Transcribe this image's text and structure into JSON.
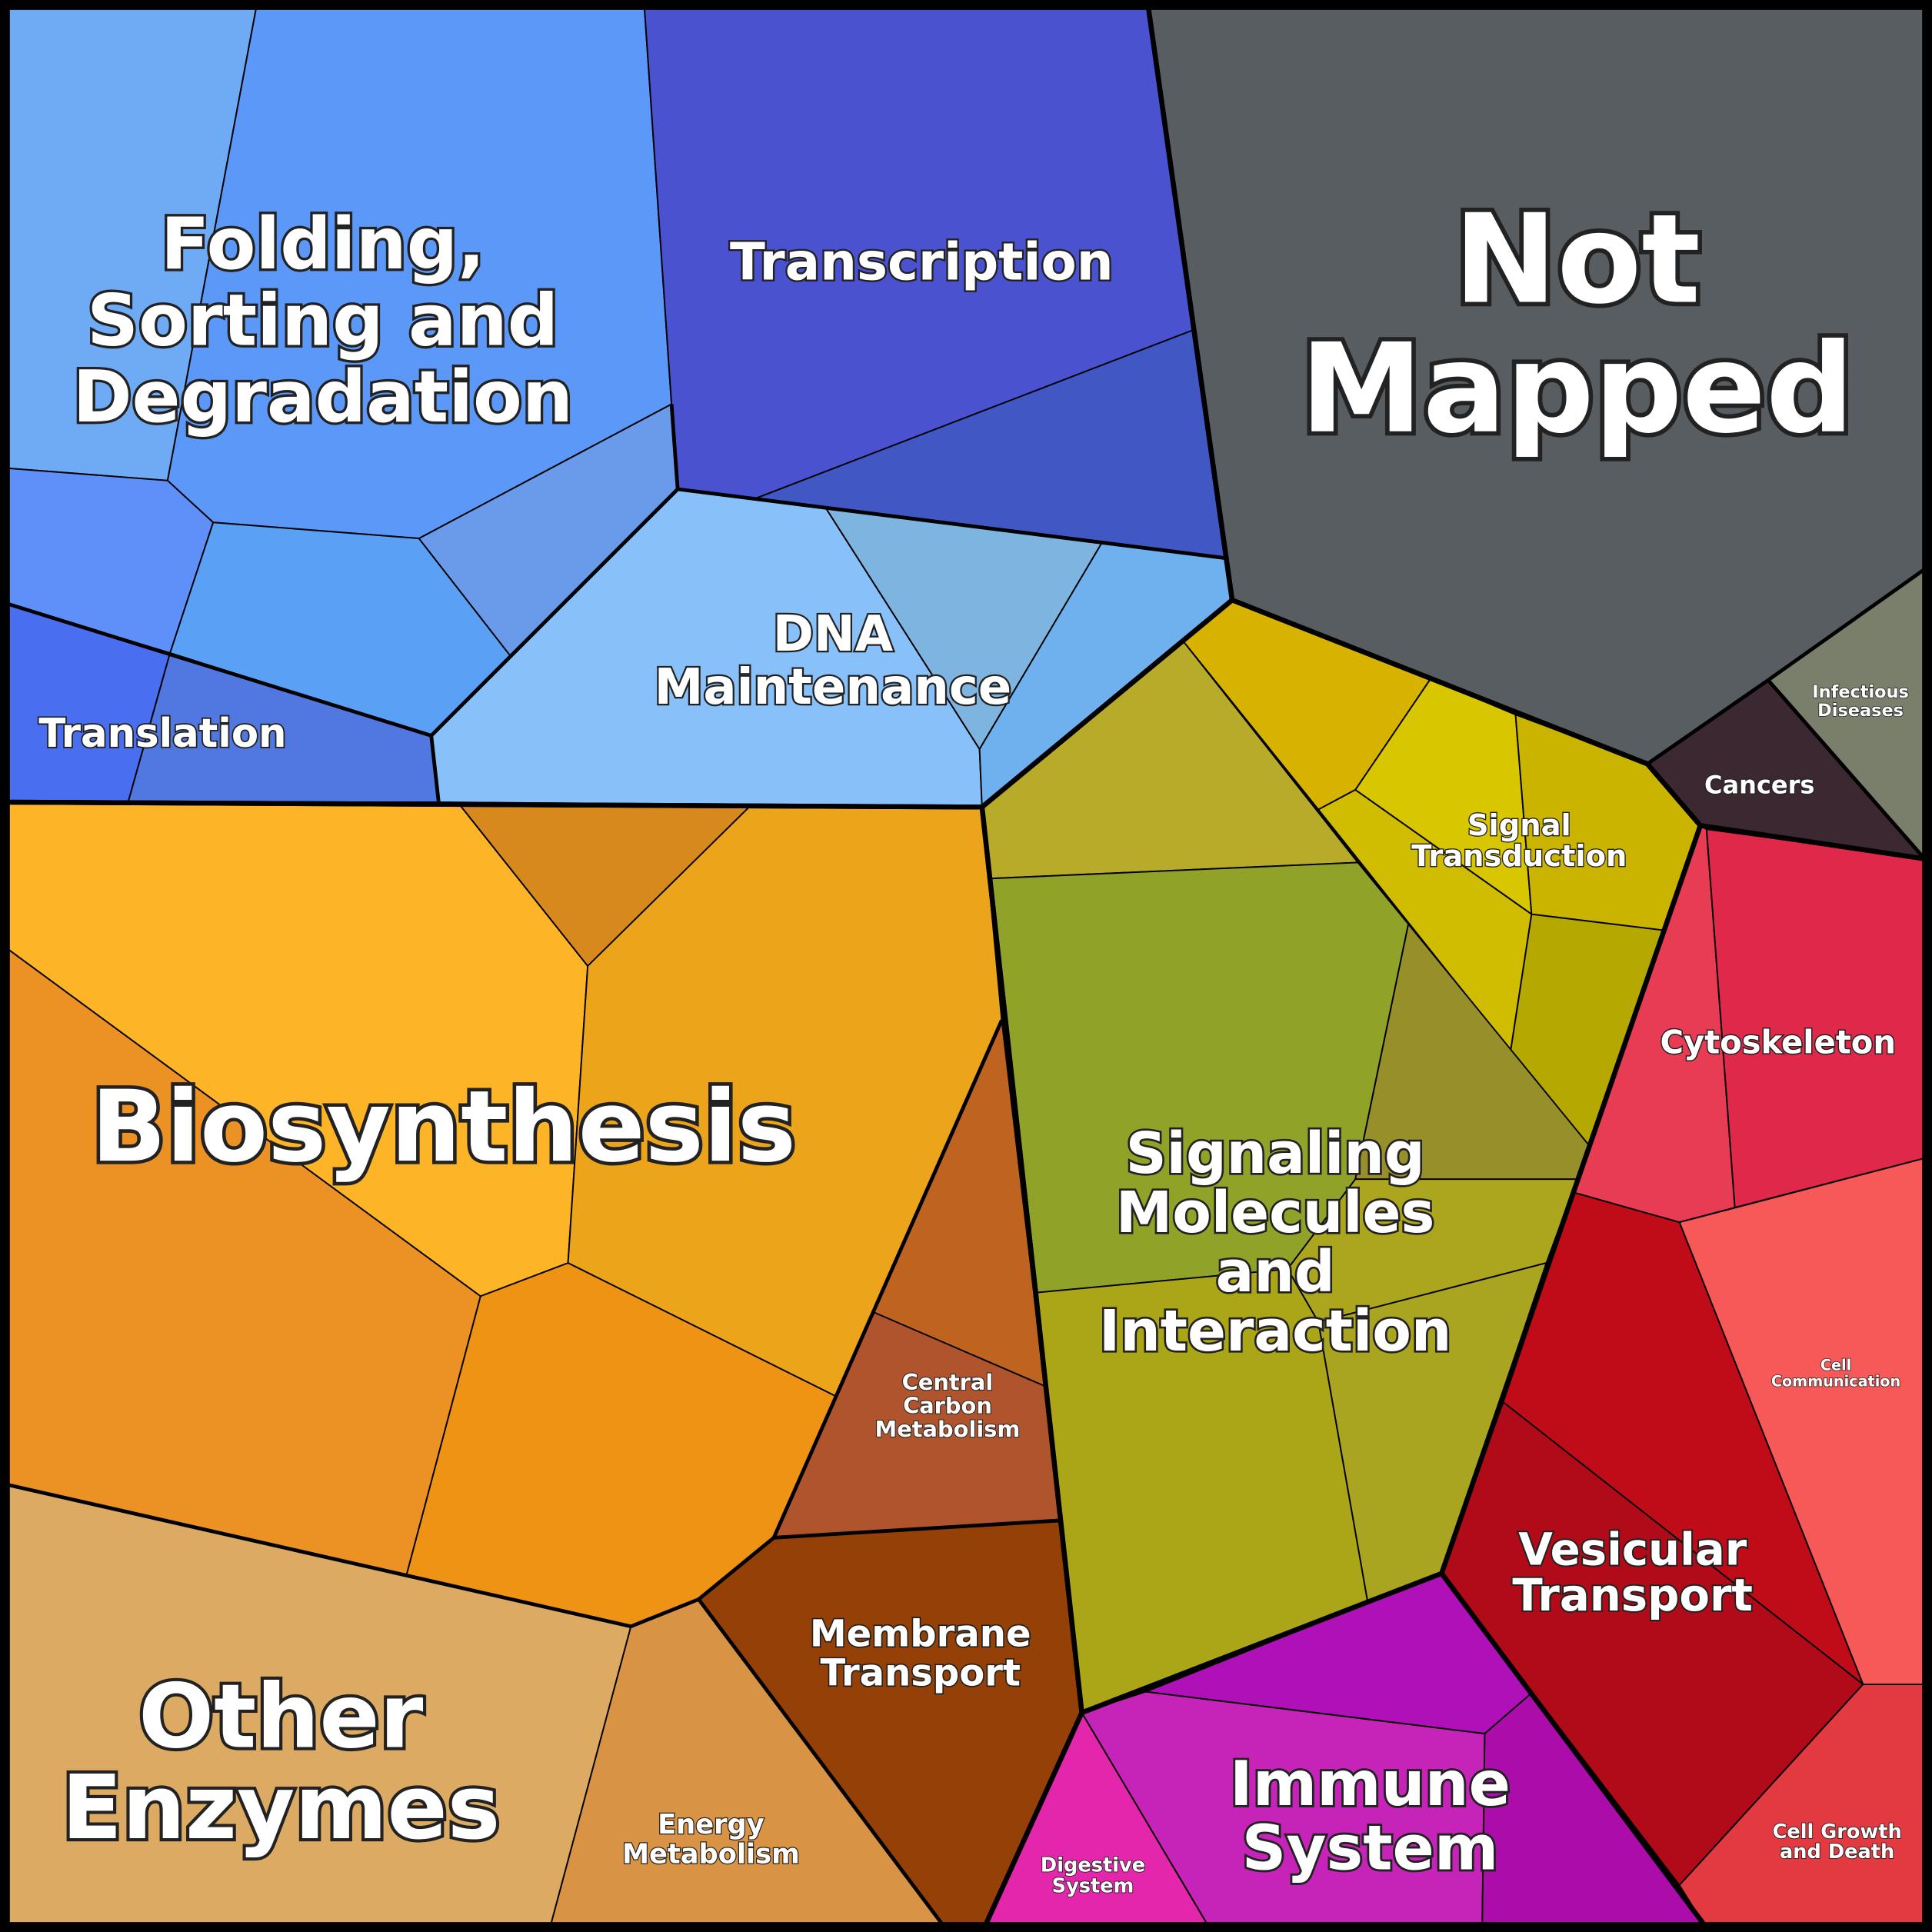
{
  "labels": [
    {
      "lines": [
        "Not",
        "Mapped"
      ]
    },
    {
      "lines": [
        "Folding,",
        "Sorting and",
        "Degradation"
      ]
    },
    {
      "lines": [
        "Transcription"
      ]
    },
    {
      "lines": [
        "DNA",
        "Maintenance"
      ]
    },
    {
      "lines": [
        "Translation"
      ]
    },
    {
      "lines": [
        "Biosynthesis"
      ]
    },
    {
      "lines": [
        "Other",
        "Enzymes"
      ]
    },
    {
      "lines": [
        "Central",
        "Carbon",
        "Metabolism"
      ]
    },
    {
      "lines": [
        "Membrane",
        "Transport"
      ]
    },
    {
      "lines": [
        "Energy",
        "Metabolism"
      ]
    },
    {
      "lines": [
        "Signaling",
        "Molecules",
        "and",
        "Interaction"
      ]
    },
    {
      "lines": [
        "Signal",
        "Transduction"
      ]
    },
    {
      "lines": [
        "Cancers"
      ]
    },
    {
      "lines": [
        "Infectious",
        "Diseases"
      ]
    },
    {
      "lines": [
        "Cytoskeleton"
      ]
    },
    {
      "lines": [
        "Cell",
        "Communication"
      ]
    },
    {
      "lines": [
        "Vesicular",
        "Transport"
      ]
    },
    {
      "lines": [
        "Cell Growth",
        "and Death"
      ]
    },
    {
      "lines": [
        "Immune",
        "System"
      ]
    },
    {
      "lines": [
        "Digestive",
        "System"
      ]
    }
  ]
}
